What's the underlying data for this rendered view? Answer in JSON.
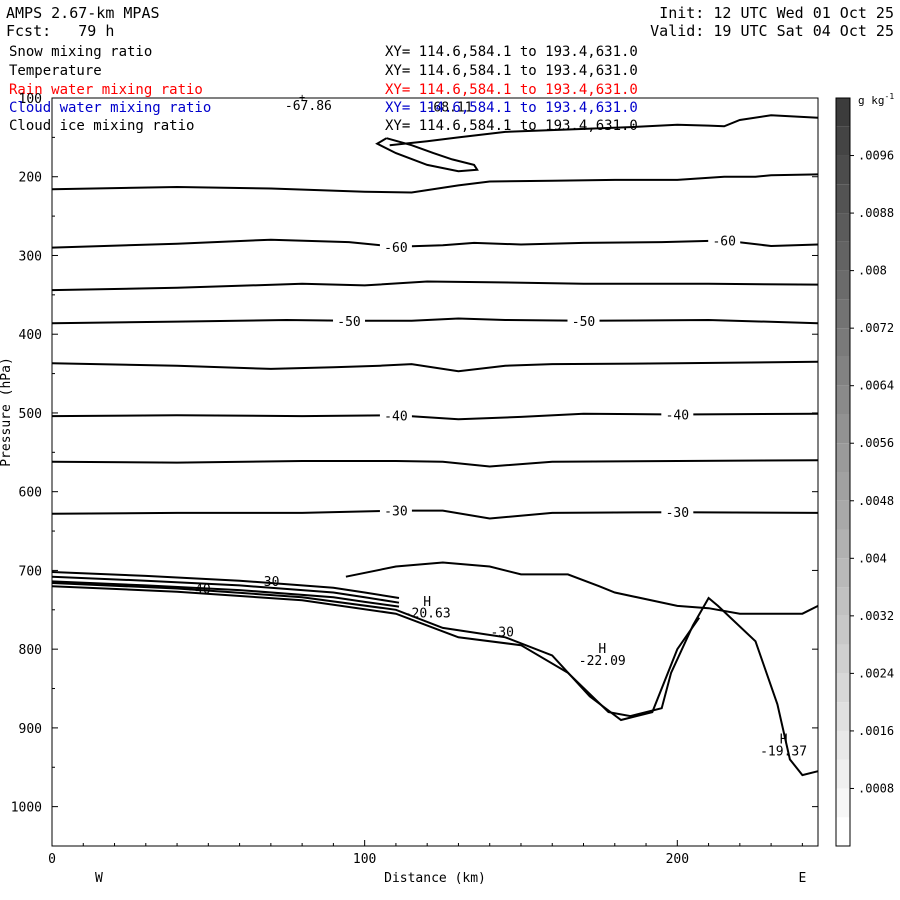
{
  "header": {
    "model": "AMPS 2.67-km MPAS",
    "forecast": "Fcst:   79 h",
    "init": "Init: 12 UTC Wed 01 Oct 25",
    "valid": "Valid: 19 UTC Sat 04 Oct 25"
  },
  "fields": [
    {
      "name": "Snow mixing ratio",
      "xy": "XY= 114.6,584.1 to 193.4,631.0",
      "color": "#000000"
    },
    {
      "name": "Temperature",
      "xy": "XY= 114.6,584.1 to 193.4,631.0",
      "color": "#000000"
    },
    {
      "name": "Rain water mixing ratio",
      "xy": "XY= 114.6,584.1 to 193.4,631.0",
      "color": "#ff0000"
    },
    {
      "name": "Cloud water mixing ratio",
      "xy": "XY= 114.6,584.1 to 193.4,631.0",
      "color": "#0000cc"
    },
    {
      "name": "Cloud ice mixing ratio",
      "xy": "XY= 114.6,584.1 to 193.4,631.0",
      "color": "#000000"
    }
  ],
  "chart_data": {
    "type": "cross-section contour",
    "xlabel": "Distance (km)",
    "ylabel": "Pressure (hPa)",
    "xlim": [
      0,
      245
    ],
    "ylim": [
      1050,
      100
    ],
    "x_ticks": [
      0,
      100,
      200
    ],
    "y_ticks": [
      100,
      200,
      300,
      400,
      500,
      600,
      700,
      800,
      900,
      1000
    ],
    "left_end_label": "W",
    "right_end_label": "E",
    "isotherms": [
      {
        "label": "-60",
        "points": [
          [
            0,
            290
          ],
          [
            40,
            285
          ],
          [
            70,
            280
          ],
          [
            95,
            283
          ],
          [
            110,
            289
          ],
          [
            125,
            287
          ],
          [
            135,
            284
          ],
          [
            150,
            286
          ],
          [
            170,
            284
          ],
          [
            195,
            283
          ],
          [
            215,
            281
          ],
          [
            230,
            288
          ],
          [
            245,
            286
          ]
        ]
      },
      {
        "label": "",
        "points": [
          [
            0,
            344
          ],
          [
            40,
            341
          ],
          [
            80,
            336
          ],
          [
            100,
            338
          ],
          [
            120,
            333
          ],
          [
            140,
            334
          ],
          [
            170,
            336
          ],
          [
            210,
            336
          ],
          [
            245,
            337
          ]
        ]
      },
      {
        "label": "-50",
        "points": [
          [
            0,
            386
          ],
          [
            40,
            384
          ],
          [
            75,
            382
          ],
          [
            95,
            383
          ],
          [
            115,
            383
          ],
          [
            130,
            380
          ],
          [
            145,
            382
          ],
          [
            170,
            383
          ],
          [
            210,
            382
          ],
          [
            245,
            386
          ]
        ]
      },
      {
        "label": "",
        "points": [
          [
            0,
            437
          ],
          [
            40,
            440
          ],
          [
            70,
            444
          ],
          [
            90,
            442
          ],
          [
            105,
            440
          ],
          [
            115,
            438
          ],
          [
            130,
            447
          ],
          [
            145,
            440
          ],
          [
            160,
            438
          ],
          [
            200,
            437
          ],
          [
            245,
            435
          ]
        ]
      },
      {
        "label": "-40",
        "points": [
          [
            0,
            504
          ],
          [
            40,
            503
          ],
          [
            80,
            504
          ],
          [
            110,
            503
          ],
          [
            130,
            508
          ],
          [
            150,
            505
          ],
          [
            170,
            501
          ],
          [
            200,
            502
          ],
          [
            245,
            501
          ]
        ]
      },
      {
        "label": "",
        "points": [
          [
            0,
            562
          ],
          [
            40,
            563
          ],
          [
            80,
            561
          ],
          [
            110,
            561
          ],
          [
            125,
            562
          ],
          [
            140,
            568
          ],
          [
            160,
            562
          ],
          [
            200,
            561
          ],
          [
            245,
            560
          ]
        ]
      },
      {
        "label": "-30",
        "points": [
          [
            0,
            628
          ],
          [
            40,
            627
          ],
          [
            80,
            627
          ],
          [
            110,
            624
          ],
          [
            125,
            624
          ],
          [
            140,
            634
          ],
          [
            160,
            627
          ],
          [
            200,
            626
          ],
          [
            245,
            627
          ]
        ]
      }
    ],
    "tropopause_contours": [
      {
        "label": "",
        "points": [
          [
            0,
            216
          ],
          [
            40,
            213
          ],
          [
            70,
            215
          ],
          [
            100,
            219
          ],
          [
            115,
            220
          ],
          [
            130,
            211
          ],
          [
            140,
            206
          ],
          [
            160,
            205
          ],
          [
            180,
            204
          ],
          [
            200,
            204
          ],
          [
            215,
            200
          ],
          [
            225,
            200
          ],
          [
            230,
            198
          ],
          [
            245,
            197
          ]
        ]
      },
      {
        "label": "",
        "points": [
          [
            108,
            160
          ],
          [
            120,
            155
          ],
          [
            130,
            150
          ],
          [
            145,
            143
          ],
          [
            165,
            140
          ],
          [
            185,
            137
          ],
          [
            200,
            134
          ],
          [
            210,
            135
          ],
          [
            215,
            136
          ],
          [
            220,
            128
          ],
          [
            230,
            122
          ],
          [
            245,
            125
          ]
        ]
      }
    ],
    "annotations": [
      {
        "text": "-67.86",
        "x": 82,
        "y": 115
      },
      {
        "text": "-68.11",
        "x": 127,
        "y": 117
      },
      {
        "text": "H",
        "x": 120,
        "y": 745
      },
      {
        "text": "-20.63",
        "x": 120,
        "y": 760
      },
      {
        "text": "H",
        "x": 176,
        "y": 805
      },
      {
        "text": "-22.09",
        "x": 176,
        "y": 820
      },
      {
        "text": "H",
        "x": 234,
        "y": 920
      },
      {
        "text": "-19.37",
        "x": 234,
        "y": 935
      },
      {
        "text": "-40",
        "x": 47,
        "y": 729
      },
      {
        "text": "-30",
        "x": 69,
        "y": 720
      },
      {
        "text": "-30",
        "x": 144,
        "y": 784
      }
    ],
    "colorbar": {
      "unit": "g kg",
      "unit_superscript": "-1",
      "min": 0,
      "max": 0.0104,
      "step": 0.0004,
      "labels": [
        ".0008",
        ".0016",
        ".0024",
        ".0032",
        ".004",
        ".0048",
        ".0056",
        ".0064",
        ".0072",
        ".008",
        ".0088",
        ".0096"
      ],
      "label_values": [
        0.0008,
        0.0016,
        0.0024,
        0.0032,
        0.004,
        0.0048,
        0.0056,
        0.0064,
        0.0072,
        0.008,
        0.0088,
        0.0096
      ]
    }
  }
}
